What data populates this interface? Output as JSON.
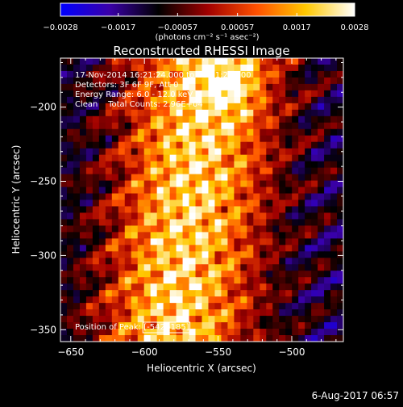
{
  "chart_data": {
    "type": "heatmap",
    "title": "Reconstructed RHESSI Image",
    "xlabel": "Heliocentric X (arcsec)",
    "ylabel": "Heliocentric Y (arcsec)",
    "xlim": [
      -657,
      -465
    ],
    "ylim": [
      -358,
      -167
    ],
    "x_ticks": [
      -650,
      -600,
      -550,
      -500
    ],
    "x_tick_labels": [
      "−650",
      "−600",
      "−550",
      "−500"
    ],
    "y_ticks": [
      -200,
      -250,
      -300,
      -350
    ],
    "y_tick_labels": [
      "−200",
      "−250",
      "−300",
      "−350"
    ],
    "colorbar": {
      "range": [
        -0.0028,
        0.0028
      ],
      "ticks": [
        -0.0028,
        -0.0017,
        -0.00057,
        0.00057,
        0.0017,
        0.0028
      ],
      "tick_labels": [
        "−0.0028",
        "−0.0017",
        "−0.00057",
        "0.00057",
        "0.0017",
        "0.0028"
      ],
      "units_label": "(photons cm⁻² s⁻¹ asec⁻²)",
      "colormap": [
        "#0000ff",
        "#3a00a8",
        "#000000",
        "#a00000",
        "#ff5000",
        "#ffc800",
        "#ffffff"
      ]
    },
    "annotations": [
      "17-Nov-2014 16:21:24.000 to 16:31:24.000",
      "Detectors: 3F 6F 9F, Att 0",
      "Energy Range: 6.0 - 12.0 keV",
      "Clean    Total Counts: 2.96E+04"
    ],
    "position_label": "Position of Peak: [-542,-185]",
    "peak": [
      -542,
      -185
    ]
  },
  "footer": {
    "timestamp": "6-Aug-2017 06:57"
  }
}
